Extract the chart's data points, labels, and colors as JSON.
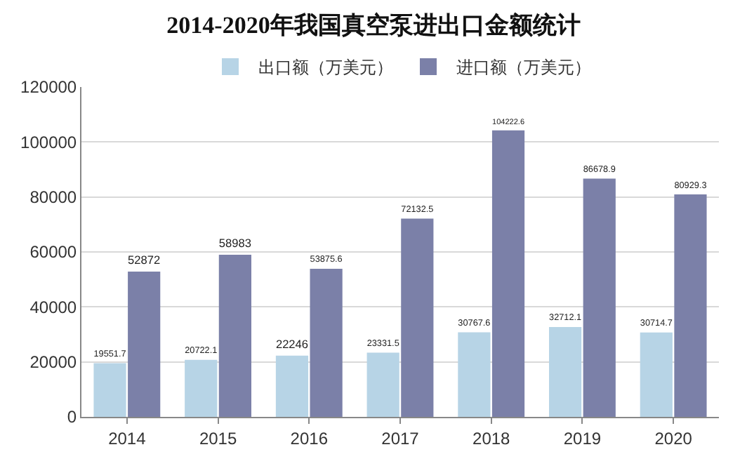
{
  "chart_data": {
    "type": "bar",
    "title": "2014-2020年我国真空泵进出口金额统计",
    "categories": [
      "2014",
      "2015",
      "2016",
      "2017",
      "2018",
      "2019",
      "2020"
    ],
    "series": [
      {
        "name": "出口额（万美元）",
        "color": "#b7d4e6",
        "values": [
          19551.7,
          20722.1,
          22246,
          23331.5,
          30767.6,
          32712.1,
          30714.7
        ]
      },
      {
        "name": "进口额（万美元）",
        "color": "#7b80a8",
        "values": [
          52872,
          58983,
          53875.6,
          72132.5,
          104222.6,
          86678.9,
          80929.3
        ]
      }
    ],
    "ylim": [
      0,
      120000
    ],
    "yticks": [
      0,
      20000,
      40000,
      60000,
      80000,
      100000,
      120000
    ],
    "grid": "y",
    "legend": "top",
    "data_labels": true
  }
}
